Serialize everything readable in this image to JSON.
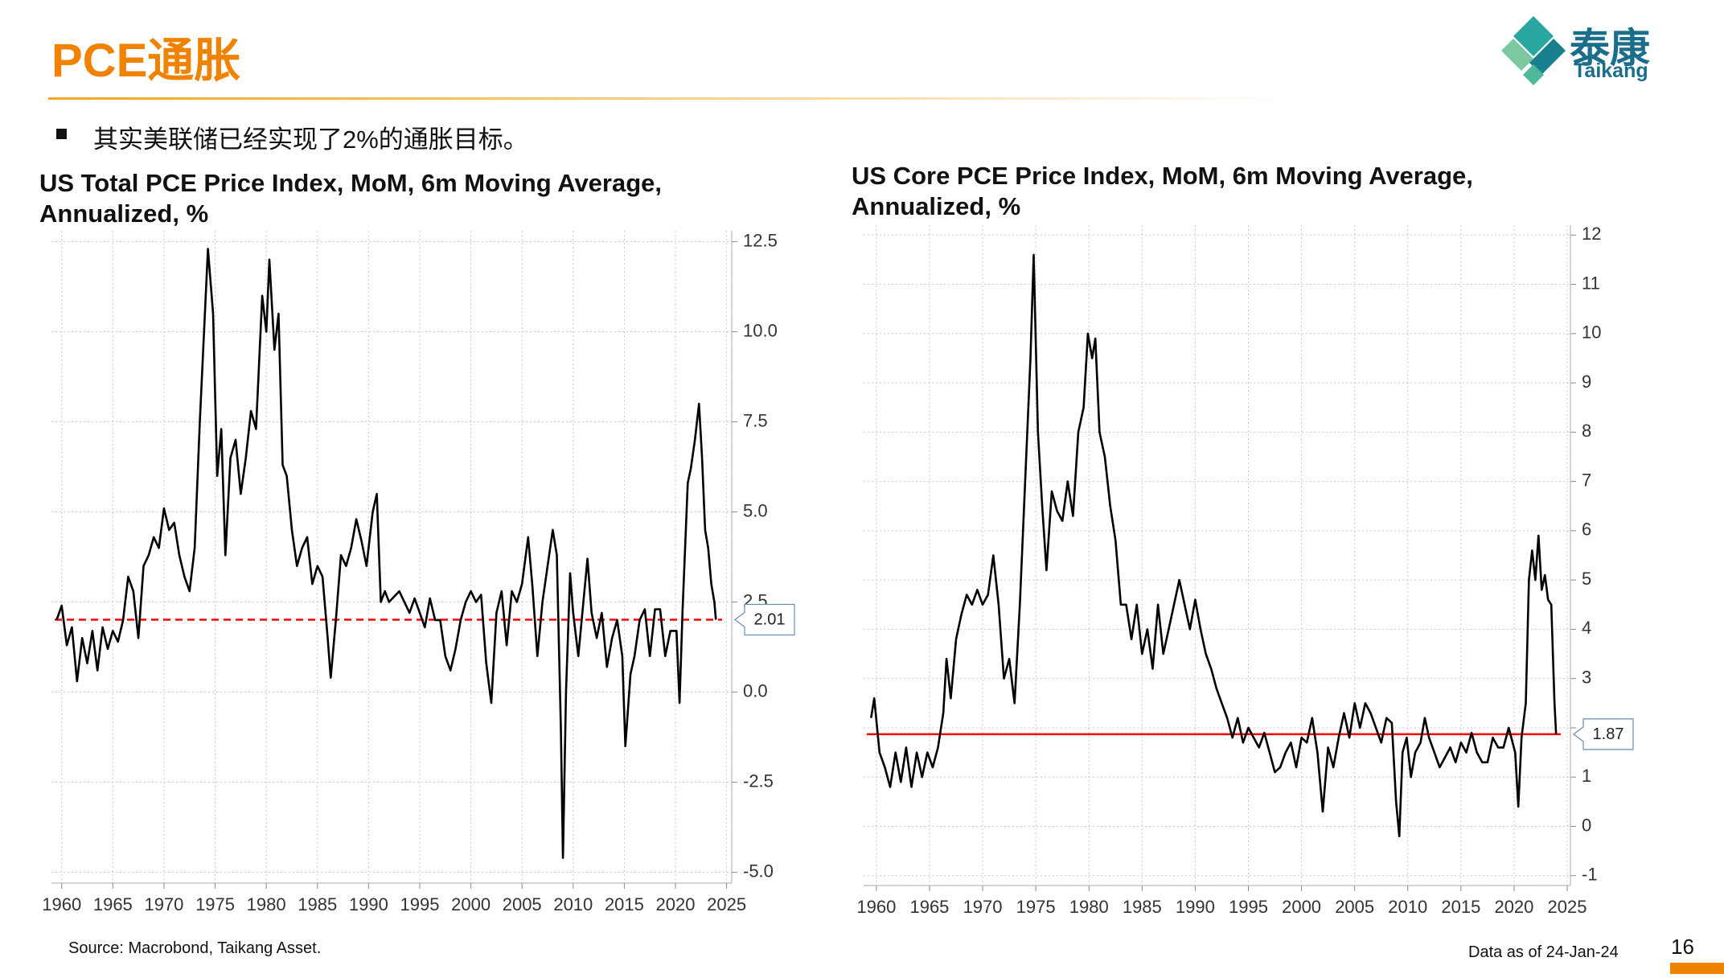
{
  "header": {
    "title": "PCE通胀",
    "logo_cn": "泰康",
    "logo_en": "Taikang"
  },
  "bullet": "其实美联储已经实现了2%的通胀目标。",
  "footer": {
    "source": "Source: Macrobond, Taikang Asset.",
    "date_note": "Data as of 24-Jan-24",
    "page_number": "16"
  },
  "chart_data": [
    {
      "type": "line",
      "title": "US Total PCE Price Index, MoM, 6m Moving Average, Annualized, %",
      "x": [
        1959.5,
        1960,
        1960.5,
        1961,
        1961.5,
        1962,
        1962.5,
        1963,
        1963.5,
        1964,
        1964.5,
        1965,
        1965.5,
        1966,
        1966.5,
        1967,
        1967.5,
        1968,
        1968.5,
        1969,
        1969.5,
        1970,
        1970.5,
        1971,
        1971.5,
        1972,
        1972.5,
        1973,
        1973.5,
        1974,
        1974.3,
        1974.8,
        1975.2,
        1975.6,
        1976,
        1976.5,
        1977,
        1977.5,
        1978,
        1978.5,
        1979,
        1979.6,
        1980,
        1980.3,
        1980.8,
        1981.2,
        1981.6,
        1982,
        1982.5,
        1983,
        1983.5,
        1984,
        1984.5,
        1985,
        1985.5,
        1986,
        1986.3,
        1986.8,
        1987.3,
        1987.8,
        1988.3,
        1988.8,
        1989.3,
        1989.8,
        1990.4,
        1990.8,
        1991.2,
        1991.6,
        1992,
        1993,
        1994,
        1994.5,
        1995,
        1995.5,
        1996,
        1996.5,
        1997,
        1997.5,
        1998,
        1998.5,
        1999,
        1999.5,
        2000,
        2000.5,
        2001,
        2001.5,
        2002,
        2002.5,
        2003,
        2003.5,
        2004,
        2004.5,
        2005,
        2005.6,
        2006,
        2006.5,
        2007,
        2007.5,
        2008,
        2008.4,
        2008.8,
        2009,
        2009.3,
        2009.7,
        2010,
        2010.5,
        2011,
        2011.4,
        2011.8,
        2012.3,
        2012.8,
        2013.3,
        2013.8,
        2014.3,
        2014.8,
        2015.1,
        2015.6,
        2016,
        2016.5,
        2017,
        2017.5,
        2018,
        2018.5,
        2019,
        2019.5,
        2020.1,
        2020.4,
        2020.7,
        2021.2,
        2021.5,
        2021.9,
        2022.3,
        2022.6,
        2022.9,
        2023.2,
        2023.5,
        2023.8,
        2023.95
      ],
      "values": [
        2.0,
        2.4,
        1.3,
        1.8,
        0.3,
        1.5,
        0.8,
        1.7,
        0.6,
        1.8,
        1.2,
        1.7,
        1.4,
        2.0,
        3.2,
        2.8,
        1.5,
        3.5,
        3.8,
        4.3,
        4.0,
        5.1,
        4.5,
        4.7,
        3.8,
        3.2,
        2.8,
        4.0,
        7.5,
        10.5,
        12.3,
        10.5,
        6.0,
        7.3,
        3.8,
        6.5,
        7.0,
        5.5,
        6.5,
        7.8,
        7.3,
        11.0,
        10.0,
        12.0,
        9.5,
        10.5,
        6.3,
        6.0,
        4.5,
        3.5,
        4.0,
        4.3,
        3.0,
        3.5,
        3.2,
        1.5,
        0.4,
        2.0,
        3.8,
        3.5,
        4.0,
        4.8,
        4.2,
        3.5,
        5.0,
        5.5,
        2.5,
        2.8,
        2.5,
        2.8,
        2.2,
        2.6,
        2.2,
        1.8,
        2.6,
        2.0,
        2.0,
        1.0,
        0.6,
        1.2,
        2.0,
        2.5,
        2.8,
        2.5,
        2.7,
        0.8,
        -0.3,
        2.2,
        2.8,
        1.3,
        2.8,
        2.5,
        3.0,
        4.3,
        3.0,
        1.0,
        2.5,
        3.5,
        4.5,
        3.8,
        -1.0,
        -4.6,
        0.0,
        3.3,
        2.2,
        1.0,
        2.5,
        3.7,
        2.2,
        1.5,
        2.2,
        0.7,
        1.5,
        2.0,
        1.0,
        -1.5,
        0.5,
        1.0,
        2.0,
        2.3,
        1.0,
        2.3,
        2.3,
        1.0,
        1.7,
        1.7,
        -0.3,
        2.3,
        5.8,
        6.2,
        7.0,
        8.0,
        6.5,
        4.5,
        4.0,
        3.0,
        2.5,
        2.01
      ],
      "color": "#000000",
      "xlim": [
        1959,
        2025.5
      ],
      "xticks": [
        1960,
        1965,
        1970,
        1975,
        1980,
        1985,
        1990,
        1995,
        2000,
        2005,
        2010,
        2015,
        2020,
        2025
      ],
      "ylim": [
        -5.3,
        12.8
      ],
      "yticks": [
        {
          "value": 12.5,
          "label": "12.5"
        },
        {
          "value": 10,
          "label": "10.0"
        },
        {
          "value": 7.5,
          "label": "7.5"
        },
        {
          "value": 5,
          "label": "5.0"
        },
        {
          "value": 2.5,
          "label": "2.5"
        },
        {
          "value": 0,
          "label": "0.0"
        },
        {
          "value": -2.5,
          "label": "-2.5"
        },
        {
          "value": -5,
          "label": "-5.0"
        }
      ],
      "grid": true,
      "y_axis_side": "right",
      "reference_line": {
        "value": 2.01,
        "color": "#ff0000",
        "dashed": true
      }
    },
    {
      "type": "line",
      "title": "US Core PCE Price Index, MoM, 6m Moving Average, Annualized, %",
      "x": [
        1959.5,
        1959.8,
        1960.3,
        1960.8,
        1961.3,
        1961.8,
        1962.3,
        1962.8,
        1963.3,
        1963.8,
        1964.3,
        1964.8,
        1965.3,
        1965.8,
        1966.3,
        1966.6,
        1967,
        1967.5,
        1968,
        1968.5,
        1969,
        1969.5,
        1970,
        1970.5,
        1971,
        1971.5,
        1972,
        1972.5,
        1973,
        1973.5,
        1974,
        1974.5,
        1974.8,
        1975.2,
        1975.6,
        1976,
        1976.5,
        1977,
        1977.5,
        1978,
        1978.5,
        1979,
        1979.5,
        1979.9,
        1980.3,
        1980.6,
        1981,
        1981.5,
        1982,
        1982.5,
        1983,
        1983.5,
        1984,
        1984.5,
        1985,
        1985.5,
        1986,
        1986.5,
        1987,
        1987.5,
        1988,
        1988.5,
        1989,
        1989.5,
        1990,
        1990.5,
        1991,
        1991.5,
        1992,
        1992.5,
        1993,
        1993.5,
        1994,
        1994.5,
        1995,
        1995.5,
        1996,
        1996.5,
        1997,
        1997.5,
        1998,
        1998.5,
        1999,
        1999.5,
        2000,
        2000.5,
        2001,
        2001.5,
        2002,
        2002.5,
        2003,
        2003.5,
        2004,
        2004.5,
        2005,
        2005.5,
        2006,
        2006.5,
        2007,
        2007.5,
        2008,
        2008.5,
        2008.9,
        2009.2,
        2009.5,
        2009.9,
        2010.3,
        2010.7,
        2011.2,
        2011.6,
        2012,
        2012.5,
        2013,
        2013.5,
        2014,
        2014.5,
        2015,
        2015.5,
        2016,
        2016.5,
        2017,
        2017.5,
        2018,
        2018.5,
        2019,
        2019.5,
        2020.1,
        2020.4,
        2020.7,
        2021.1,
        2021.4,
        2021.7,
        2022,
        2022.3,
        2022.6,
        2022.9,
        2023.2,
        2023.5,
        2023.8,
        2023.95
      ],
      "values": [
        2.2,
        2.6,
        1.5,
        1.2,
        0.8,
        1.5,
        0.9,
        1.6,
        0.8,
        1.5,
        1.0,
        1.5,
        1.2,
        1.6,
        2.3,
        3.4,
        2.6,
        3.8,
        4.3,
        4.7,
        4.5,
        4.8,
        4.5,
        4.7,
        5.5,
        4.5,
        3.0,
        3.4,
        2.5,
        4.5,
        7.0,
        9.5,
        11.6,
        8.0,
        6.5,
        5.2,
        6.8,
        6.4,
        6.2,
        7.0,
        6.3,
        8.0,
        8.5,
        10.0,
        9.5,
        9.9,
        8.0,
        7.5,
        6.5,
        5.8,
        4.5,
        4.5,
        3.8,
        4.5,
        3.5,
        4.0,
        3.2,
        4.5,
        3.5,
        4.0,
        4.5,
        5.0,
        4.5,
        4.0,
        4.6,
        4.0,
        3.5,
        3.2,
        2.8,
        2.5,
        2.2,
        1.8,
        2.2,
        1.7,
        2.0,
        1.8,
        1.6,
        1.9,
        1.5,
        1.1,
        1.2,
        1.5,
        1.7,
        1.2,
        1.8,
        1.7,
        2.2,
        1.5,
        0.3,
        1.6,
        1.2,
        1.8,
        2.3,
        1.8,
        2.5,
        2.0,
        2.5,
        2.3,
        2.0,
        1.7,
        2.2,
        2.1,
        0.5,
        -0.2,
        1.5,
        1.8,
        1.0,
        1.5,
        1.7,
        2.2,
        1.8,
        1.5,
        1.2,
        1.4,
        1.6,
        1.3,
        1.7,
        1.5,
        1.9,
        1.5,
        1.3,
        1.3,
        1.8,
        1.6,
        1.6,
        2.0,
        1.5,
        0.4,
        1.8,
        2.5,
        5.0,
        5.6,
        5.0,
        5.9,
        4.8,
        5.1,
        4.6,
        4.5,
        2.5,
        1.87
      ],
      "color": "#000000",
      "xlim": [
        1958.8,
        2025.3
      ],
      "xticks": [
        1960,
        1965,
        1970,
        1975,
        1980,
        1985,
        1990,
        1995,
        2000,
        2005,
        2010,
        2015,
        2020,
        2025
      ],
      "ylim": [
        -1.2,
        12.2
      ],
      "yticks": [
        12,
        11,
        10,
        9,
        8,
        7,
        6,
        5,
        4,
        3,
        2,
        1,
        0,
        -1
      ],
      "grid": true,
      "y_axis_side": "right",
      "reference_line": {
        "value": 1.87,
        "color": "#ff0000",
        "dashed": false
      }
    }
  ]
}
